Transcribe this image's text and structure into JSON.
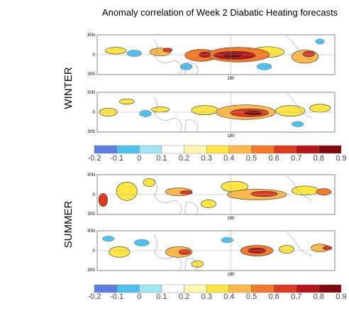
{
  "title": "Anomaly correlation of Week 2 Diabatic Heating forecasts",
  "season_labels": [
    "WINTER",
    "SUMMER"
  ],
  "chart_data": {
    "type": "heatmap",
    "title": "Anomaly correlation of Week 2 Diabatic Heating forecasts",
    "y_tick_labels": [
      "30N",
      "0",
      "30S"
    ],
    "x_tick_labels": [
      "180"
    ],
    "colorbar": {
      "ticks": [
        "-0.2",
        "-0.1",
        "0",
        "0.1",
        "0.2",
        "0.3",
        "0.4",
        "0.5",
        "0.6",
        "0.7",
        "0.8",
        "0.9"
      ],
      "colors": [
        "#5a7fe0",
        "#4ec0ee",
        "#a0e6f4",
        "#ffffff",
        "#fff7b0",
        "#ffe640",
        "#ffb84a",
        "#f47a2a",
        "#e03a1e",
        "#b8141a",
        "#82080c"
      ]
    },
    "panels": [
      {
        "season": "WINTER",
        "blobs": [
          {
            "lon": 25,
            "lat": 6,
            "rx": 14,
            "ry": 5,
            "value": 0.35
          },
          {
            "lon": 50,
            "lat": 2,
            "rx": 10,
            "ry": 5,
            "value": -0.1
          },
          {
            "lon": 85,
            "lat": 4,
            "rx": 14,
            "ry": 6,
            "value": 0.45
          },
          {
            "lon": 95,
            "lat": 7,
            "rx": 6,
            "ry": 3,
            "value": 0.65
          },
          {
            "lon": 140,
            "lat": -1,
            "rx": 22,
            "ry": 9,
            "value": 0.5
          },
          {
            "lon": 145,
            "lat": 0,
            "rx": 8,
            "ry": 4,
            "value": 0.7
          },
          {
            "lon": 190,
            "lat": 0,
            "rx": 42,
            "ry": 11,
            "value": 0.5
          },
          {
            "lon": 185,
            "lat": -1,
            "rx": 28,
            "ry": 6,
            "value": 0.7
          },
          {
            "lon": 182,
            "lat": -1,
            "rx": 12,
            "ry": 3,
            "value": 0.85
          },
          {
            "lon": 230,
            "lat": 4,
            "rx": 22,
            "ry": 8,
            "value": 0.3
          },
          {
            "lon": 280,
            "lat": -3,
            "rx": 18,
            "ry": 10,
            "value": 0.4
          },
          {
            "lon": 285,
            "lat": 1,
            "rx": 8,
            "ry": 4,
            "value": 0.6
          },
          {
            "lon": 120,
            "lat": -18,
            "rx": 8,
            "ry": 5,
            "value": -0.1
          },
          {
            "lon": 225,
            "lat": -18,
            "rx": 10,
            "ry": 5,
            "value": -0.1
          },
          {
            "lon": 300,
            "lat": 20,
            "rx": 6,
            "ry": 4,
            "value": -0.1
          }
        ]
      },
      {
        "season": "WINTER",
        "blobs": [
          {
            "lon": 15,
            "lat": 0,
            "rx": 12,
            "ry": 6,
            "value": 0.3
          },
          {
            "lon": 40,
            "lat": 16,
            "rx": 10,
            "ry": 4,
            "value": 0.3
          },
          {
            "lon": 65,
            "lat": -2,
            "rx": 8,
            "ry": 5,
            "value": -0.1
          },
          {
            "lon": 85,
            "lat": 4,
            "rx": 12,
            "ry": 4,
            "value": 0.3
          },
          {
            "lon": 145,
            "lat": 3,
            "rx": 18,
            "ry": 7,
            "value": 0.3
          },
          {
            "lon": 200,
            "lat": 0,
            "rx": 40,
            "ry": 11,
            "value": 0.45
          },
          {
            "lon": 205,
            "lat": -1,
            "rx": 26,
            "ry": 6,
            "value": 0.65
          },
          {
            "lon": 210,
            "lat": -1,
            "rx": 12,
            "ry": 3,
            "value": 0.8
          },
          {
            "lon": 260,
            "lat": 2,
            "rx": 20,
            "ry": 8,
            "value": 0.35
          },
          {
            "lon": 300,
            "lat": 6,
            "rx": 14,
            "ry": 6,
            "value": 0.3
          },
          {
            "lon": 270,
            "lat": -18,
            "rx": 8,
            "ry": 4,
            "value": -0.1
          }
        ]
      },
      {
        "season": "SUMMER",
        "blobs": [
          {
            "lon": 8,
            "lat": -8,
            "rx": 6,
            "ry": 10,
            "value": 0.6
          },
          {
            "lon": 40,
            "lat": 5,
            "rx": 14,
            "ry": 14,
            "value": 0.3
          },
          {
            "lon": 70,
            "lat": 18,
            "rx": 8,
            "ry": 6,
            "value": 0.3
          },
          {
            "lon": 110,
            "lat": 4,
            "rx": 18,
            "ry": 6,
            "value": 0.4
          },
          {
            "lon": 120,
            "lat": 3,
            "rx": 8,
            "ry": 3,
            "value": 0.65
          },
          {
            "lon": 150,
            "lat": -14,
            "rx": 10,
            "ry": 6,
            "value": 0.3
          },
          {
            "lon": 185,
            "lat": 12,
            "rx": 18,
            "ry": 8,
            "value": 0.3
          },
          {
            "lon": 215,
            "lat": 0,
            "rx": 40,
            "ry": 8,
            "value": 0.4
          },
          {
            "lon": 225,
            "lat": 1,
            "rx": 18,
            "ry": 4,
            "value": 0.6
          },
          {
            "lon": 280,
            "lat": 6,
            "rx": 18,
            "ry": 7,
            "value": 0.3
          },
          {
            "lon": 305,
            "lat": 4,
            "rx": 10,
            "ry": 5,
            "value": 0.55
          }
        ]
      },
      {
        "season": "SUMMER",
        "blobs": [
          {
            "lon": 15,
            "lat": 18,
            "rx": 8,
            "ry": 4,
            "value": -0.1
          },
          {
            "lon": 30,
            "lat": -2,
            "rx": 14,
            "ry": 8,
            "value": 0.3
          },
          {
            "lon": 60,
            "lat": 12,
            "rx": 10,
            "ry": 5,
            "value": -0.1
          },
          {
            "lon": 110,
            "lat": -2,
            "rx": 18,
            "ry": 8,
            "value": 0.4
          },
          {
            "lon": 118,
            "lat": -2,
            "rx": 8,
            "ry": 4,
            "value": 0.6
          },
          {
            "lon": 135,
            "lat": -20,
            "rx": 8,
            "ry": 5,
            "value": 0.3
          },
          {
            "lon": 215,
            "lat": 0,
            "rx": 22,
            "ry": 8,
            "value": 0.5
          },
          {
            "lon": 215,
            "lat": 0,
            "rx": 12,
            "ry": 4,
            "value": 0.7
          },
          {
            "lon": 255,
            "lat": 2,
            "rx": 10,
            "ry": 6,
            "value": 0.35
          },
          {
            "lon": 300,
            "lat": 4,
            "rx": 12,
            "ry": 6,
            "value": 0.4
          },
          {
            "lon": 310,
            "lat": 4,
            "rx": 6,
            "ry": 3,
            "value": 0.6
          },
          {
            "lon": 175,
            "lat": 16,
            "rx": 8,
            "ry": 4,
            "value": -0.1
          }
        ]
      }
    ]
  }
}
